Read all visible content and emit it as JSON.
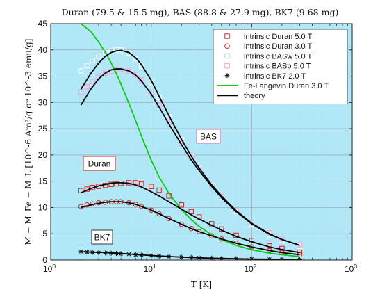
{
  "chart_data": {
    "type": "scatter",
    "title": "Duran (79.5 & 15.5 mg), BAS (88.8 & 27.9 mg), BK7 (9.68 mg)",
    "xlabel": "T [K]",
    "ylabel": "M − M_Fe − M_L [10^-6 Am²/g or 10^-3 emu/g]",
    "xscale": "log",
    "xlim": [
      1,
      1000
    ],
    "ylim": [
      0,
      45
    ],
    "xticks": [
      {
        "value": 1,
        "label": "10",
        "sup": "0"
      },
      {
        "value": 10,
        "label": "10",
        "sup": "1"
      },
      {
        "value": 100,
        "label": "10",
        "sup": "2"
      },
      {
        "value": 1000,
        "label": "10",
        "sup": "3"
      }
    ],
    "yticks": [
      0,
      5,
      10,
      15,
      20,
      25,
      30,
      35,
      40,
      45
    ],
    "grid": true,
    "legend_position": "top-right",
    "background": "#b0e8f8",
    "annotations": [
      "BAS",
      "Duran",
      "BK7"
    ],
    "series": [
      {
        "name": "intrinsic Duran 5.0 T",
        "marker": "square",
        "color": "#d42020",
        "x": [
          2.0,
          2.3,
          2.6,
          3.0,
          3.5,
          4.0,
          4.5,
          5.0,
          6.0,
          7.0,
          8.0,
          10.0,
          12.0,
          15.0,
          20.0,
          25.0,
          30.0,
          40.0,
          50.0,
          70.0,
          100.0,
          150.0,
          200.0,
          300.0
        ],
        "y": [
          13.2,
          13.5,
          13.8,
          14.0,
          14.2,
          14.4,
          14.5,
          14.6,
          14.7,
          14.7,
          14.5,
          14.0,
          13.3,
          12.2,
          10.5,
          9.2,
          8.2,
          6.9,
          5.9,
          4.7,
          3.7,
          2.7,
          2.2,
          1.5
        ]
      },
      {
        "name": "intrinsic Duran 3.0 T",
        "marker": "circle",
        "color": "#d42020",
        "x": [
          2.0,
          2.3,
          2.6,
          3.0,
          3.5,
          4.0,
          4.5,
          5.0,
          6.0,
          7.0,
          8.0,
          10.0,
          12.0,
          15.0,
          20.0,
          25.0,
          30.0,
          40.0,
          50.0,
          70.0,
          100.0,
          150.0,
          200.0,
          300.0
        ],
        "y": [
          10.2,
          10.5,
          10.7,
          10.9,
          11.0,
          11.1,
          11.1,
          11.1,
          10.9,
          10.6,
          10.2,
          9.5,
          8.8,
          7.9,
          6.8,
          6.0,
          5.4,
          4.6,
          4.0,
          3.2,
          2.5,
          1.8,
          1.4,
          1.0
        ]
      },
      {
        "name": "intrinsic BASw 5.0 T",
        "marker": "square",
        "color": "#ffffff",
        "x": [
          2.0,
          2.3,
          2.6,
          3.0,
          3.5,
          4.0,
          4.5,
          5.0,
          6.0,
          7.0,
          8.0,
          10.0,
          12.0,
          15.0,
          20.0,
          25.0,
          30.0,
          40.0,
          50.0,
          70.0,
          100.0,
          150.0,
          200.0,
          300.0
        ],
        "y": [
          36.0,
          37.0,
          38.0,
          38.8,
          39.5,
          39.8,
          40.0,
          40.0,
          39.4,
          38.3,
          36.9,
          33.8,
          30.9,
          27.3,
          22.9,
          19.7,
          17.4,
          14.2,
          12.0,
          9.2,
          6.8,
          4.8,
          3.7,
          2.6
        ]
      },
      {
        "name": "intrinsic BASp 5.0 T",
        "marker": "square",
        "color": "#f2a0d0",
        "x": [
          2.0,
          2.3,
          2.6,
          3.0,
          3.5,
          4.0,
          4.5,
          5.0,
          6.0,
          7.0,
          8.0,
          10.0,
          12.0,
          15.0,
          20.0,
          25.0,
          30.0,
          40.0,
          50.0,
          70.0,
          100.0,
          150.0,
          200.0,
          300.0
        ],
        "y": [
          32.0,
          33.0,
          34.0,
          34.8,
          35.5,
          35.9,
          36.2,
          36.3,
          36.0,
          35.3,
          34.3,
          31.9,
          29.5,
          26.3,
          22.3,
          19.4,
          17.2,
          14.1,
          12.1,
          9.4,
          7.1,
          5.2,
          4.1,
          2.9
        ]
      },
      {
        "name": "intrinsic BK7 2.0 T",
        "marker": "asterisk",
        "color": "#111111",
        "x": [
          2.0,
          2.3,
          2.6,
          3.0,
          3.5,
          4.0,
          4.5,
          5.0,
          6.0,
          7.0,
          8.0,
          10.0,
          12.0,
          15.0,
          20.0,
          25.0,
          30.0,
          40.0,
          50.0,
          70.0,
          100.0,
          150.0,
          200.0,
          300.0
        ],
        "y": [
          1.6,
          1.5,
          1.45,
          1.4,
          1.35,
          1.3,
          1.25,
          1.2,
          1.1,
          1.0,
          0.95,
          0.85,
          0.75,
          0.65,
          0.55,
          0.48,
          0.42,
          0.36,
          0.3,
          0.25,
          0.2,
          0.15,
          0.12,
          0.1
        ]
      },
      {
        "name": "Fe-Langevin Duran 3.0 T",
        "style": "line",
        "color": "#10c810",
        "x": [
          2.0,
          2.5,
          3.0,
          3.5,
          4.0,
          4.5,
          5.0,
          6.0,
          7.0,
          8.0,
          10.0,
          12.0,
          15.0,
          20.0,
          25.0,
          30.0,
          40.0,
          50.0,
          70.0,
          100.0,
          150.0,
          200.0,
          300.0
        ],
        "y": [
          45.0,
          43.5,
          41.5,
          39.5,
          37.5,
          35.5,
          33.5,
          29.8,
          26.5,
          23.6,
          19.0,
          15.8,
          12.7,
          9.6,
          7.7,
          6.4,
          4.8,
          3.9,
          2.8,
          1.95,
          1.3,
          1.0,
          0.65
        ]
      },
      {
        "name": "theory",
        "style": "line",
        "color": "#000000",
        "x": [
          2.0,
          2.5,
          3.0,
          3.5,
          4.0,
          4.5,
          5.0,
          6.0,
          7.0,
          8.0,
          10.0,
          12.0,
          15.0,
          20.0,
          25.0,
          30.0,
          40.0,
          50.0,
          70.0,
          100.0,
          150.0,
          200.0,
          300.0
        ],
        "curves": [
          [
            32.5,
            35.5,
            37.5,
            38.8,
            39.5,
            39.8,
            39.9,
            39.5,
            38.5,
            37.2,
            34.2,
            31.2,
            27.5,
            23.0,
            19.8,
            17.5,
            14.3,
            12.2,
            9.4,
            7.0,
            5.0,
            3.9,
            2.8
          ],
          [
            29.5,
            32.5,
            34.5,
            35.6,
            36.2,
            36.4,
            36.4,
            36.0,
            35.2,
            34.1,
            31.6,
            29.1,
            25.9,
            22.0,
            19.1,
            17.0,
            14.0,
            11.9,
            9.2,
            6.9,
            4.9,
            3.9,
            2.8
          ],
          [
            12.8,
            13.6,
            14.1,
            14.4,
            14.6,
            14.7,
            14.7,
            14.6,
            14.3,
            13.9,
            13.0,
            12.2,
            11.1,
            9.7,
            8.6,
            7.8,
            6.6,
            5.7,
            4.5,
            3.5,
            2.5,
            2.0,
            1.4
          ],
          [
            10.0,
            10.5,
            10.8,
            11.0,
            11.1,
            11.1,
            11.1,
            10.9,
            10.6,
            10.2,
            9.5,
            8.8,
            7.9,
            6.8,
            6.0,
            5.4,
            4.6,
            4.0,
            3.2,
            2.5,
            1.8,
            1.4,
            1.0
          ],
          [
            1.6,
            1.5,
            1.45,
            1.4,
            1.35,
            1.3,
            1.25,
            1.15,
            1.05,
            0.98,
            0.86,
            0.77,
            0.67,
            0.55,
            0.47,
            0.42,
            0.35,
            0.3,
            0.24,
            0.19,
            0.14,
            0.11,
            0.08
          ]
        ]
      }
    ]
  }
}
